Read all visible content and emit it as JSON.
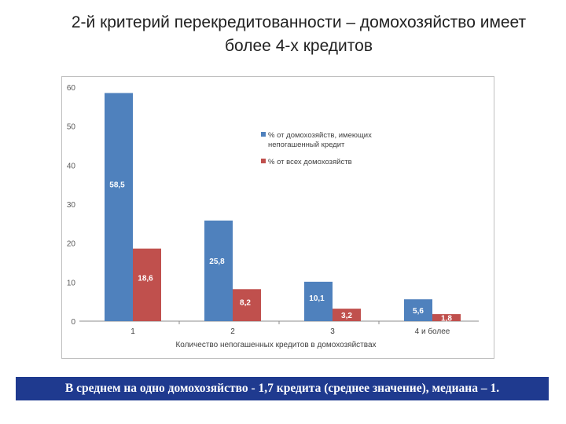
{
  "title": {
    "line1": "2-й критерий перекредитованности – домохозяйство имеет",
    "line2": "более  4-х кредитов"
  },
  "chart_data": {
    "type": "bar",
    "categories": [
      "1",
      "2",
      "3",
      "4 и более"
    ],
    "series": [
      {
        "name": "% от домохозяйств, имеющих непогашенный кредит",
        "legend_lines": [
          "% от домохозяйств, имеющих",
          "непогашенный кредит"
        ],
        "color": "#4f81bd",
        "values": [
          58.5,
          25.8,
          10.1,
          5.6
        ],
        "labels": [
          "58,5",
          "25,8",
          "10,1",
          "5,6"
        ]
      },
      {
        "name": "% от всех домохозяйств",
        "legend_lines": [
          "% от всех домохозяйств"
        ],
        "color": "#c0504d",
        "values": [
          18.6,
          8.2,
          3.2,
          1.8
        ],
        "labels": [
          "18,6",
          "8,2",
          "3,2",
          "1,8"
        ]
      }
    ],
    "yticks": [
      "0",
      "10",
      "20",
      "30",
      "40",
      "50",
      "60"
    ],
    "ylim": [
      0,
      60
    ],
    "xlabel": "Количество непогашенных кредитов в домохозяйствах",
    "ylabel": "",
    "legend": "right"
  },
  "footer": {
    "text": "В среднем на одно домохозяйство  - 1,7 кредита (среднее значение), медиана – 1."
  },
  "colors": {
    "footer_bg": "#1f3a8f"
  }
}
